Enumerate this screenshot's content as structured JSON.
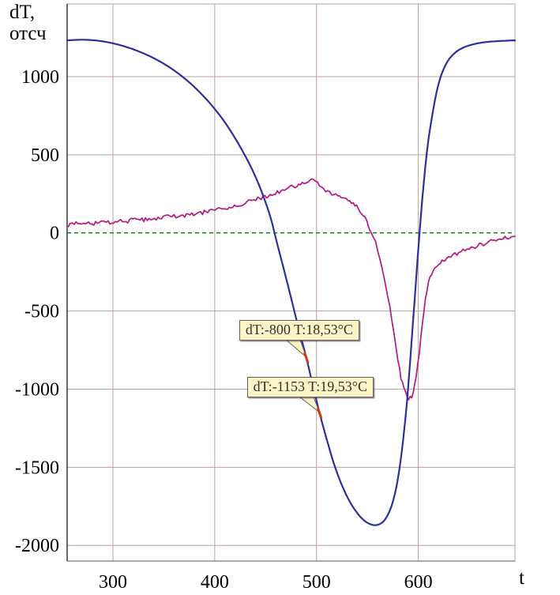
{
  "axes": {
    "y_label_line1": "dT,",
    "y_label_line2": "отсч",
    "x_label": "t"
  },
  "chart_data": {
    "type": "line",
    "title": "",
    "xlabel": "t",
    "ylabel": "dT, отсч",
    "xlim": [
      255,
      695
    ],
    "ylim": [
      -2100,
      1465
    ],
    "x_ticks": [
      300,
      400,
      500,
      600
    ],
    "y_ticks": [
      1000,
      500,
      0,
      -500,
      -1000,
      -1500,
      -2000
    ],
    "grid": true,
    "grid_color": "#bfa0a0",
    "axis_color": "#444444",
    "zero_line": {
      "value": 0,
      "color": "#0e7a12",
      "style": "dashed"
    },
    "series": [
      {
        "name": "blue",
        "color": "#2e2e9d",
        "width": 2.2,
        "points": [
          [
            255,
            1232
          ],
          [
            270,
            1236
          ],
          [
            285,
            1230
          ],
          [
            300,
            1213
          ],
          [
            315,
            1186
          ],
          [
            330,
            1149
          ],
          [
            345,
            1101
          ],
          [
            360,
            1040
          ],
          [
            375,
            963
          ],
          [
            390,
            868
          ],
          [
            405,
            752
          ],
          [
            418,
            628
          ],
          [
            430,
            492
          ],
          [
            440,
            360
          ],
          [
            448,
            230
          ],
          [
            455,
            95
          ],
          [
            461,
            -60
          ],
          [
            468,
            -235
          ],
          [
            475,
            -415
          ],
          [
            482,
            -600
          ],
          [
            490,
            -800
          ],
          [
            496,
            -965
          ],
          [
            503,
            -1153
          ],
          [
            510,
            -1320
          ],
          [
            517,
            -1475
          ],
          [
            524,
            -1600
          ],
          [
            531,
            -1700
          ],
          [
            538,
            -1775
          ],
          [
            545,
            -1830
          ],
          [
            552,
            -1862
          ],
          [
            559,
            -1870
          ],
          [
            566,
            -1845
          ],
          [
            572,
            -1778
          ],
          [
            577,
            -1672
          ],
          [
            581,
            -1532
          ],
          [
            585,
            -1330
          ],
          [
            589,
            -1075
          ],
          [
            592,
            -820
          ],
          [
            595,
            -555
          ],
          [
            598,
            -285
          ],
          [
            601,
            -20
          ],
          [
            604,
            220
          ],
          [
            607,
            430
          ],
          [
            610,
            600
          ],
          [
            614,
            762
          ],
          [
            618,
            902
          ],
          [
            623,
            1018
          ],
          [
            629,
            1100
          ],
          [
            636,
            1152
          ],
          [
            644,
            1185
          ],
          [
            653,
            1205
          ],
          [
            663,
            1218
          ],
          [
            675,
            1226
          ],
          [
            695,
            1232
          ]
        ]
      },
      {
        "name": "magenta",
        "color": "#b5187f",
        "width": 1.7,
        "noise": 13,
        "points": [
          [
            255,
            45
          ],
          [
            262,
            60
          ],
          [
            269,
            52
          ],
          [
            276,
            68
          ],
          [
            283,
            60
          ],
          [
            290,
            72
          ],
          [
            297,
            66
          ],
          [
            304,
            76
          ],
          [
            311,
            70
          ],
          [
            318,
            82
          ],
          [
            325,
            88
          ],
          [
            332,
            84
          ],
          [
            339,
            95
          ],
          [
            346,
            92
          ],
          [
            353,
            102
          ],
          [
            360,
            108
          ],
          [
            367,
            104
          ],
          [
            374,
            118
          ],
          [
            381,
            122
          ],
          [
            388,
            130
          ],
          [
            395,
            138
          ],
          [
            402,
            148
          ],
          [
            409,
            158
          ],
          [
            416,
            168
          ],
          [
            423,
            180
          ],
          [
            430,
            192
          ],
          [
            437,
            205
          ],
          [
            444,
            220
          ],
          [
            451,
            235
          ],
          [
            458,
            252
          ],
          [
            465,
            268
          ],
          [
            472,
            285
          ],
          [
            479,
            300
          ],
          [
            486,
            315
          ],
          [
            492,
            328
          ],
          [
            497,
            333
          ],
          [
            501,
            318
          ],
          [
            505,
            295
          ],
          [
            509,
            272
          ],
          [
            513,
            255
          ],
          [
            517,
            243
          ],
          [
            521,
            235
          ],
          [
            526,
            228
          ],
          [
            531,
            215
          ],
          [
            536,
            192
          ],
          [
            541,
            158
          ],
          [
            546,
            108
          ],
          [
            551,
            48
          ],
          [
            556,
            -25
          ],
          [
            560,
            -105
          ],
          [
            564,
            -205
          ],
          [
            568,
            -330
          ],
          [
            572,
            -480
          ],
          [
            576,
            -645
          ],
          [
            580,
            -810
          ],
          [
            583,
            -925
          ],
          [
            586,
            -1000
          ],
          [
            589,
            -1048
          ],
          [
            592,
            -1058
          ],
          [
            595,
            -1015
          ],
          [
            598,
            -915
          ],
          [
            601,
            -760
          ],
          [
            604,
            -580
          ],
          [
            607,
            -425
          ],
          [
            610,
            -322
          ],
          [
            613,
            -262
          ],
          [
            616,
            -228
          ],
          [
            620,
            -200
          ],
          [
            625,
            -178
          ],
          [
            630,
            -158
          ],
          [
            636,
            -140
          ],
          [
            642,
            -122
          ],
          [
            648,
            -106
          ],
          [
            654,
            -92
          ],
          [
            660,
            -78
          ],
          [
            666,
            -66
          ],
          [
            673,
            -52
          ],
          [
            680,
            -40
          ],
          [
            687,
            -28
          ],
          [
            695,
            -18
          ]
        ]
      }
    ],
    "annotations": [
      {
        "label": "dT:-800 T:18,53°C",
        "x": 490,
        "y": -800,
        "box_dx": -85,
        "box_dy": -48
      },
      {
        "label": "dT:-1153 T:19,53°C",
        "x": 503,
        "y": -1153,
        "box_dx": -92,
        "box_dy": -46
      }
    ]
  }
}
